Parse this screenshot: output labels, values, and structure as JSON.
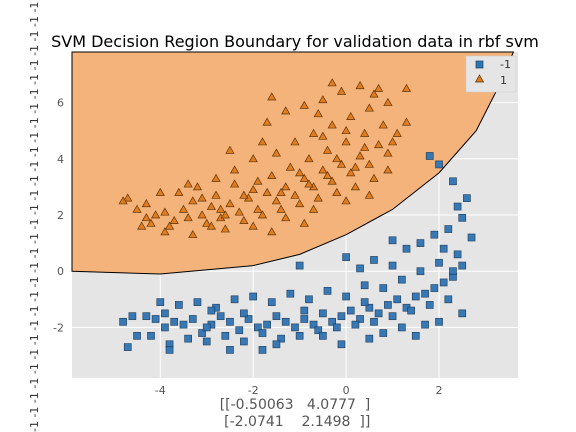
{
  "chart_data": {
    "type": "scatter",
    "title": "SVM Decision Region Boundary for validation data in rbf svm",
    "xlabel_lines": [
      "[[-0.50063   4.0777  ]",
      " [-2.0741    2.1498  ]]"
    ],
    "ylabel": "",
    "xlim": [
      -5.9,
      3.7
    ],
    "ylim": [
      -3.8,
      7.8
    ],
    "xticks": [
      -4,
      -2,
      0,
      2
    ],
    "yticks": [
      -2,
      0,
      2,
      4,
      6
    ],
    "grid": true,
    "legend_position": "top-right",
    "side_text": "-1 -1 -1 -1 -1 -1 -1 -1 -1 -1 -1 -1 -1 -1 -1 -1 -1 -1 -1 -1 -1 -1 -1 -1 -1 -1 -1 -1 -1 -1 -1 -1 -1 -1 -1 -1 -1 -1 -1 -1 -1 -1 -1 -1 -1 -1 -1 -1 -1 -1 -1 -1 -1 -1 -1 -1 -1 -1 -1 -1",
    "decision_region": {
      "class": "1",
      "boundary": [
        [
          -5.9,
          0.0
        ],
        [
          -4.0,
          -0.1
        ],
        [
          -2.0,
          0.2
        ],
        [
          -1.0,
          0.6
        ],
        [
          0.0,
          1.3
        ],
        [
          1.0,
          2.2
        ],
        [
          2.0,
          3.5
        ],
        [
          2.8,
          5.0
        ],
        [
          3.2,
          6.3
        ],
        [
          3.4,
          7.0
        ],
        [
          3.6,
          7.8
        ]
      ],
      "color": "#f4b37b"
    },
    "series": [
      {
        "name": "-1",
        "marker": "square",
        "color": "#2f74b3",
        "points": [
          [
            -4.6,
            -1.6
          ],
          [
            -4.3,
            -1.6
          ],
          [
            -4.1,
            -1.7
          ],
          [
            -3.9,
            -1.5
          ],
          [
            -3.7,
            -1.8
          ],
          [
            -3.5,
            -1.9
          ],
          [
            -3.3,
            -1.7
          ],
          [
            -3.1,
            -2.2
          ],
          [
            -2.9,
            -1.9
          ],
          [
            -2.7,
            -1.6
          ],
          [
            -2.5,
            -1.8
          ],
          [
            -2.3,
            -2.1
          ],
          [
            -2.1,
            -1.7
          ],
          [
            -1.9,
            -2.0
          ],
          [
            -1.7,
            -1.9
          ],
          [
            -1.5,
            -1.6
          ],
          [
            -1.3,
            -1.8
          ],
          [
            -1.1,
            -2.0
          ],
          [
            -0.9,
            -1.7
          ],
          [
            -0.7,
            -1.9
          ],
          [
            -0.5,
            -1.5
          ],
          [
            -0.3,
            -1.8
          ],
          [
            -0.1,
            -1.6
          ],
          [
            0.1,
            -1.4
          ],
          [
            0.3,
            -1.7
          ],
          [
            0.5,
            -1.3
          ],
          [
            0.7,
            -1.5
          ],
          [
            0.9,
            -1.2
          ],
          [
            1.1,
            -1.0
          ],
          [
            1.3,
            -1.3
          ],
          [
            1.5,
            -0.9
          ],
          [
            1.7,
            -0.8
          ],
          [
            1.9,
            -0.6
          ],
          [
            2.1,
            -0.4
          ],
          [
            2.3,
            -0.2
          ],
          [
            2.5,
            0.2
          ],
          [
            -4.2,
            -2.3
          ],
          [
            -3.8,
            -2.6
          ],
          [
            -3.4,
            -2.4
          ],
          [
            -3.0,
            -2.0
          ],
          [
            -2.6,
            -2.3
          ],
          [
            -2.2,
            -2.5
          ],
          [
            -1.8,
            -2.2
          ],
          [
            -1.4,
            -2.4
          ],
          [
            -1.0,
            -2.3
          ],
          [
            -0.6,
            -2.1
          ],
          [
            -0.2,
            -2.0
          ],
          [
            0.2,
            -1.9
          ],
          [
            0.6,
            -1.8
          ],
          [
            1.0,
            -1.6
          ],
          [
            1.4,
            -1.4
          ],
          [
            1.8,
            -1.2
          ],
          [
            2.2,
            -1.0
          ],
          [
            -3.6,
            -1.2
          ],
          [
            -3.2,
            -1.1
          ],
          [
            -2.8,
            -1.3
          ],
          [
            -2.4,
            -1.0
          ],
          [
            -2.0,
            -0.9
          ],
          [
            -1.6,
            -1.1
          ],
          [
            -1.2,
            -0.8
          ],
          [
            -0.8,
            -1.0
          ],
          [
            -0.4,
            -0.7
          ],
          [
            0.0,
            -0.9
          ],
          [
            0.4,
            -0.5
          ],
          [
            0.8,
            -0.6
          ],
          [
            1.2,
            -0.3
          ],
          [
            1.6,
            0.0
          ],
          [
            2.0,
            0.3
          ],
          [
            2.4,
            0.6
          ],
          [
            0.0,
            0.5
          ],
          [
            0.3,
            0.1
          ],
          [
            0.6,
            0.4
          ],
          [
            1.0,
            0.2
          ],
          [
            1.3,
            0.8
          ],
          [
            1.6,
            1.0
          ],
          [
            1.9,
            1.3
          ],
          [
            2.2,
            1.5
          ],
          [
            2.5,
            1.9
          ],
          [
            2.6,
            2.6
          ],
          [
            2.3,
            3.2
          ],
          [
            2.0,
            3.8
          ],
          [
            1.8,
            4.1
          ],
          [
            2.4,
            2.3
          ],
          [
            -1.0,
            0.2
          ],
          [
            -2.5,
            -2.8
          ],
          [
            -3.8,
            -2.8
          ],
          [
            -4.7,
            -2.7
          ],
          [
            -1.8,
            -2.8
          ],
          [
            -0.5,
            -2.3
          ],
          [
            0.5,
            -2.4
          ],
          [
            1.5,
            -2.3
          ],
          [
            2.0,
            -1.8
          ],
          [
            2.5,
            -1.5
          ],
          [
            2.7,
            1.2
          ],
          [
            2.1,
            0.8
          ],
          [
            -4.0,
            -1.1
          ],
          [
            -2.2,
            -1.5
          ],
          [
            0.8,
            -2.2
          ],
          [
            1.2,
            -2.0
          ],
          [
            -1.5,
            -2.6
          ],
          [
            -0.1,
            -2.6
          ],
          [
            -3.0,
            -2.5
          ],
          [
            -4.5,
            -2.3
          ],
          [
            1.7,
            -1.9
          ],
          [
            2.3,
            0.0
          ],
          [
            1.0,
            1.1
          ],
          [
            0.4,
            -1.1
          ],
          [
            -0.9,
            -1.4
          ],
          [
            -2.9,
            -1.4
          ],
          [
            -3.9,
            -2.0
          ],
          [
            -4.8,
            -1.8
          ]
        ]
      },
      {
        "name": "1",
        "marker": "triangle",
        "color": "#e07b1a",
        "points": [
          [
            -4.7,
            2.6
          ],
          [
            -4.5,
            2.2
          ],
          [
            -4.3,
            1.9
          ],
          [
            -4.1,
            2.0
          ],
          [
            -3.9,
            2.1
          ],
          [
            -3.7,
            1.8
          ],
          [
            -3.5,
            2.2
          ],
          [
            -3.3,
            2.5
          ],
          [
            -3.1,
            2.0
          ],
          [
            -2.9,
            2.3
          ],
          [
            -2.7,
            1.9
          ],
          [
            -2.5,
            2.4
          ],
          [
            -2.3,
            2.1
          ],
          [
            -2.1,
            2.6
          ],
          [
            -1.9,
            2.2
          ],
          [
            -1.7,
            2.8
          ],
          [
            -1.5,
            2.5
          ],
          [
            -1.3,
            3.0
          ],
          [
            -1.1,
            2.7
          ],
          [
            -0.9,
            3.3
          ],
          [
            -0.7,
            3.0
          ],
          [
            -0.5,
            3.6
          ],
          [
            -0.3,
            3.2
          ],
          [
            -0.1,
            3.8
          ],
          [
            0.1,
            3.5
          ],
          [
            0.3,
            4.1
          ],
          [
            0.5,
            3.8
          ],
          [
            0.7,
            4.5
          ],
          [
            0.9,
            4.2
          ],
          [
            1.1,
            4.9
          ],
          [
            1.3,
            5.3
          ],
          [
            -4.2,
            1.7
          ],
          [
            -3.8,
            1.6
          ],
          [
            -3.4,
            1.9
          ],
          [
            -3.0,
            1.7
          ],
          [
            -2.6,
            2.0
          ],
          [
            -2.2,
            1.8
          ],
          [
            -1.8,
            2.0
          ],
          [
            -1.4,
            2.2
          ],
          [
            -1.0,
            2.4
          ],
          [
            -0.6,
            2.6
          ],
          [
            -0.2,
            2.8
          ],
          [
            0.2,
            3.0
          ],
          [
            0.6,
            3.3
          ],
          [
            -3.6,
            2.8
          ],
          [
            -3.2,
            3.0
          ],
          [
            -2.8,
            2.7
          ],
          [
            -2.4,
            3.1
          ],
          [
            -2.0,
            2.9
          ],
          [
            -1.6,
            3.4
          ],
          [
            -1.2,
            3.7
          ],
          [
            -0.8,
            4.0
          ],
          [
            -0.4,
            4.3
          ],
          [
            0.0,
            4.6
          ],
          [
            0.4,
            4.9
          ],
          [
            0.8,
            5.2
          ],
          [
            -1.5,
            4.2
          ],
          [
            -1.1,
            4.6
          ],
          [
            -0.7,
            4.9
          ],
          [
            -0.3,
            5.2
          ],
          [
            0.1,
            5.5
          ],
          [
            0.5,
            5.8
          ],
          [
            0.9,
            6.0
          ],
          [
            -1.7,
            5.3
          ],
          [
            -1.3,
            5.7
          ],
          [
            -0.9,
            5.9
          ],
          [
            -0.5,
            6.1
          ],
          [
            -0.1,
            6.4
          ],
          [
            0.3,
            6.6
          ],
          [
            0.7,
            6.5
          ],
          [
            1.3,
            6.5
          ],
          [
            -1.6,
            6.2
          ],
          [
            -0.3,
            6.7
          ],
          [
            -2.0,
            4.0
          ],
          [
            -2.4,
            3.6
          ],
          [
            -2.8,
            3.3
          ],
          [
            -3.4,
            3.1
          ],
          [
            -4.0,
            2.8
          ],
          [
            -4.4,
            1.6
          ],
          [
            -3.9,
            1.4
          ],
          [
            -3.3,
            1.3
          ],
          [
            -2.6,
            1.5
          ],
          [
            -2.0,
            1.6
          ],
          [
            -1.3,
            1.9
          ],
          [
            -0.7,
            2.2
          ],
          [
            0.0,
            2.5
          ],
          [
            0.5,
            2.7
          ],
          [
            -1.0,
            3.5
          ],
          [
            -0.2,
            4.0
          ],
          [
            0.4,
            4.4
          ],
          [
            1.0,
            4.6
          ],
          [
            0.9,
            3.6
          ],
          [
            0.6,
            6.3
          ],
          [
            -0.6,
            5.6
          ],
          [
            -2.7,
            2.2
          ],
          [
            -3.1,
            2.6
          ],
          [
            -2.2,
            2.7
          ],
          [
            -1.9,
            3.2
          ],
          [
            -1.4,
            2.8
          ],
          [
            -0.8,
            3.1
          ],
          [
            -0.4,
            3.4
          ],
          [
            0.2,
            3.7
          ],
          [
            -4.3,
            2.4
          ],
          [
            -4.8,
            2.5
          ],
          [
            -2.9,
            1.6
          ],
          [
            -1.6,
            1.4
          ],
          [
            -0.9,
            1.7
          ],
          [
            -0.5,
            4.8
          ],
          [
            0.0,
            5.0
          ],
          [
            -1.8,
            4.6
          ],
          [
            -2.5,
            4.3
          ]
        ]
      }
    ]
  }
}
